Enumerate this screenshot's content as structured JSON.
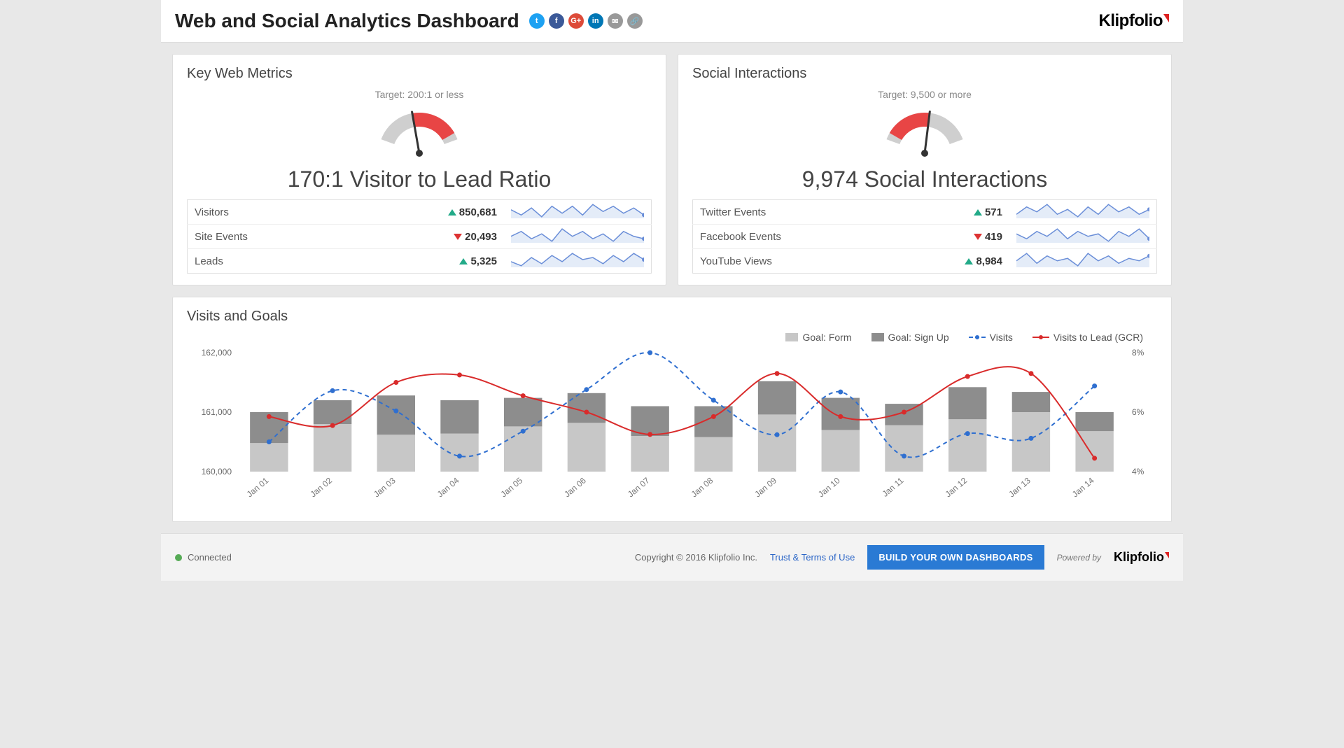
{
  "header": {
    "title": "Web and Social Analytics Dashboard",
    "logo": "Klipfolio",
    "social": [
      {
        "name": "twitter",
        "bg": "#1da1f2",
        "glyph": "t"
      },
      {
        "name": "facebook",
        "bg": "#3b5998",
        "glyph": "f"
      },
      {
        "name": "google-plus",
        "bg": "#dd4b39",
        "glyph": "G+"
      },
      {
        "name": "linkedin",
        "bg": "#0077b5",
        "glyph": "in"
      },
      {
        "name": "email",
        "bg": "#999999",
        "glyph": "✉"
      },
      {
        "name": "link",
        "bg": "#999999",
        "glyph": "🔗"
      }
    ]
  },
  "keyWeb": {
    "title": "Key Web Metrics",
    "target": "Target: 200:1 or less",
    "metric": "170:1 Visitor to Lead Ratio",
    "gauge": {
      "needle_deg": -10,
      "fill_start_deg": -10,
      "fill_end_deg": 60,
      "fill_color": "#e84545",
      "bg_color": "#cfcfcf"
    },
    "rows": [
      {
        "label": "Visitors",
        "value": "850,681",
        "trend": "up"
      },
      {
        "label": "Site Events",
        "value": "20,493",
        "trend": "down"
      },
      {
        "label": "Leads",
        "value": "5,325",
        "trend": "up"
      }
    ],
    "spark_color": "#6a8ed8",
    "spark_fill": "#e4ecf8",
    "sparks": [
      [
        12,
        9,
        13,
        8,
        14,
        10,
        14,
        9,
        15,
        11,
        14,
        10,
        13,
        9
      ],
      [
        11,
        13,
        10,
        12,
        9,
        14,
        11,
        13,
        10,
        12,
        9,
        13,
        11,
        10
      ],
      [
        10,
        8,
        12,
        9,
        13,
        10,
        14,
        11,
        12,
        9,
        13,
        10,
        14,
        11
      ]
    ]
  },
  "social": {
    "title": "Social Interactions",
    "target": "Target: 9,500 or more",
    "metric": "9,974 Social Interactions",
    "gauge": {
      "needle_deg": 7,
      "fill_start_deg": -60,
      "fill_end_deg": 7,
      "fill_color": "#e84545",
      "bg_color": "#cfcfcf"
    },
    "rows": [
      {
        "label": "Twitter Events",
        "value": "571",
        "trend": "up"
      },
      {
        "label": "Facebook Events",
        "value": "419",
        "trend": "down"
      },
      {
        "label": "YouTube Views",
        "value": "8,984",
        "trend": "up"
      }
    ],
    "spark_color": "#6a8ed8",
    "spark_fill": "#e4ecf8",
    "sparks": [
      [
        10,
        13,
        11,
        14,
        10,
        12,
        9,
        13,
        10,
        14,
        11,
        13,
        10,
        12
      ],
      [
        12,
        10,
        13,
        11,
        14,
        10,
        13,
        11,
        12,
        9,
        13,
        11,
        14,
        10
      ],
      [
        11,
        14,
        10,
        13,
        11,
        12,
        9,
        14,
        11,
        13,
        10,
        12,
        11,
        13
      ]
    ]
  },
  "visitsGoals": {
    "title": "Visits and Goals",
    "legend": {
      "form": "Goal: Form",
      "signup": "Goal: Sign Up",
      "visits": "Visits",
      "gcr": "Visits to Lead (GCR)"
    },
    "colors": {
      "form_bar": "#c7c7c7",
      "signup_bar": "#8d8d8d",
      "visits_line": "#2f6fd0",
      "gcr_line": "#d92b2b",
      "axis": "#888",
      "grid": "#eeeeee",
      "bg": "#ffffff"
    },
    "y_left": {
      "min": 160000,
      "max": 162000,
      "ticks": [
        160000,
        161000,
        162000
      ],
      "labels": [
        "160,000",
        "161,000",
        "162,000"
      ]
    },
    "y_right": {
      "min": 4,
      "max": 8,
      "ticks": [
        4,
        6,
        8
      ],
      "labels": [
        "4%",
        "6%",
        "8%"
      ]
    },
    "x_labels": [
      "Jan 01",
      "Jan 02",
      "Jan 03",
      "Jan 04",
      "Jan 05",
      "Jan 06",
      "Jan 07",
      "Jan 08",
      "Jan 09",
      "Jan 10",
      "Jan 11",
      "Jan 12",
      "Jan 13",
      "Jan 14"
    ],
    "form_vals": [
      160480,
      160800,
      160620,
      160640,
      160760,
      160820,
      160600,
      160580,
      160960,
      160700,
      160780,
      160880,
      161000,
      160680
    ],
    "signup_vals": [
      161000,
      161200,
      161280,
      161200,
      161240,
      161320,
      161100,
      161100,
      161520,
      161240,
      161140,
      161420,
      161340,
      161000
    ],
    "visits_vals": [
      160500,
      161360,
      161020,
      160260,
      160680,
      161380,
      162000,
      161200,
      160620,
      161340,
      160260,
      160640,
      160560,
      161440
    ],
    "gcr_vals": [
      5.85,
      5.55,
      7.0,
      7.25,
      6.55,
      6.0,
      5.25,
      5.85,
      7.3,
      5.85,
      6.0,
      7.2,
      7.3,
      4.45
    ],
    "bar_width_ratio": 0.6
  },
  "footer": {
    "status": "Connected",
    "copyright": "Copyright © 2016 Klipfolio Inc.",
    "terms": "Trust & Terms of Use",
    "build": "BUILD YOUR OWN DASHBOARDS",
    "powered": "Powered by",
    "logo": "Klipfolio"
  }
}
